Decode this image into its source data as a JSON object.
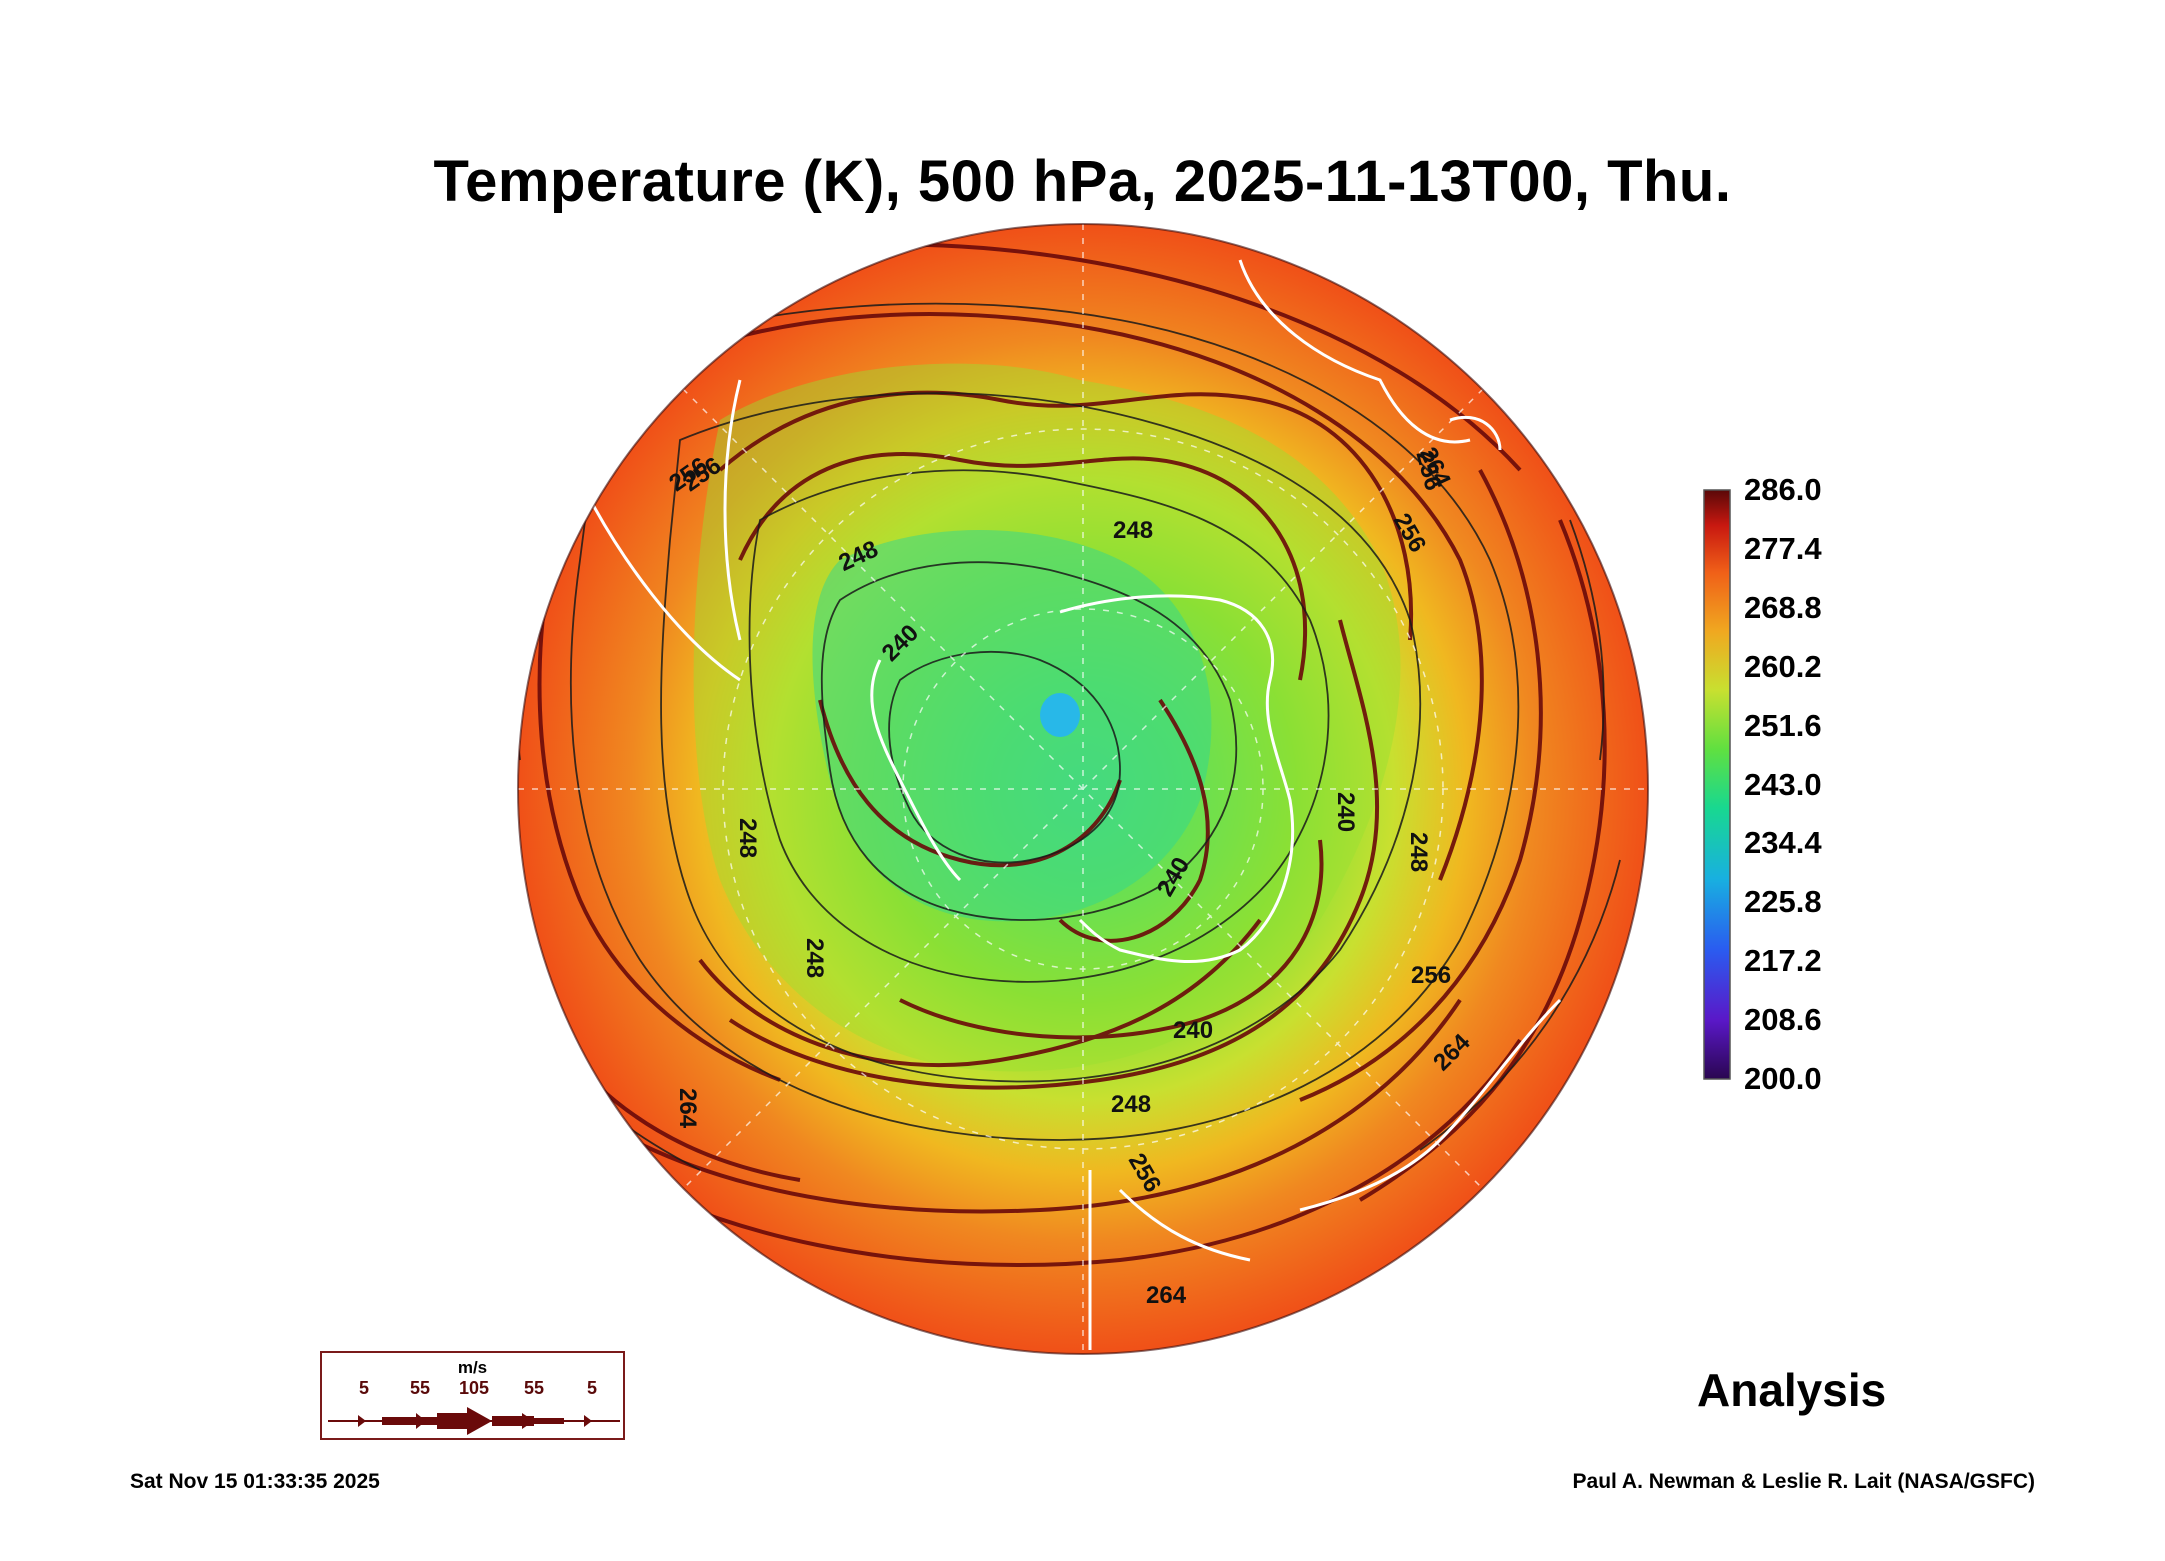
{
  "title": "Temperature (K), 500 hPa, 2025-11-13T00, Thu.",
  "colorbar": {
    "labels": [
      "286.0",
      "277.4",
      "268.8",
      "260.2",
      "251.6",
      "243.0",
      "234.4",
      "225.8",
      "217.2",
      "208.6",
      "200.0"
    ],
    "min": 200.0,
    "max": 286.0,
    "colors": [
      "#3a0a6a",
      "#5a18c8",
      "#2a5cf0",
      "#1ea8e8",
      "#18d898",
      "#6ce43c",
      "#c4e030",
      "#f0b020",
      "#f07818",
      "#e83818",
      "#6a0a0a"
    ]
  },
  "contour_labels": [
    "248",
    "248",
    "240",
    "256",
    "264",
    "256",
    "256",
    "264",
    "248",
    "248",
    "240",
    "240",
    "248",
    "256",
    "264",
    "256",
    "264",
    "240",
    "248",
    "256"
  ],
  "analysis_label": "Analysis",
  "timestamp": "Sat Nov 15 01:33:35 2025",
  "credit": "Paul A. Newman & Leslie R. Lait (NASA/GSFC)",
  "wind_legend": {
    "unit": "m/s",
    "speeds": [
      "5",
      "55",
      "105",
      "55",
      "5"
    ],
    "color": "#6a0a0a"
  },
  "colors": {
    "stream": "#6a0a0a",
    "contour": "#1a1a1a",
    "coast": "#ffffff"
  }
}
